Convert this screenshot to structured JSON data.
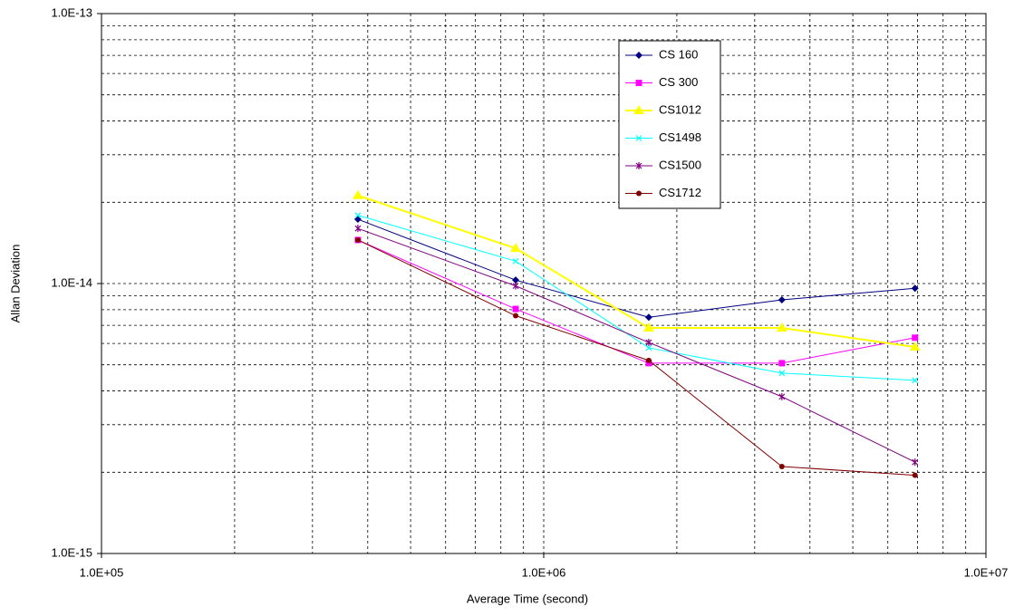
{
  "chart_data": {
    "type": "line",
    "x_label": "Average Time (second)",
    "y_label": "Allan Deviation",
    "log_x": true,
    "log_y": true,
    "grid": true,
    "legend": "top-center",
    "xlim": [
      100000,
      10000000
    ],
    "xticks": [
      {
        "value": 100000,
        "label": "1.0E+05"
      },
      {
        "value": 1000000,
        "label": "1.0E+06"
      },
      {
        "value": 10000000,
        "label": "1.0E+07"
      }
    ],
    "ylim": [
      1e-15,
      1e-13
    ],
    "yticks": [
      {
        "value": 1e-15,
        "label": "1.0E-15"
      },
      {
        "value": 1e-14,
        "label": "1.0E-14"
      },
      {
        "value": 1e-13,
        "label": "1.0E-13"
      }
    ],
    "x": [
      380000,
      864000,
      1728000,
      3456000,
      6912000
    ],
    "series": [
      {
        "name": "CS 160",
        "color": "#000080",
        "marker": "diamond",
        "values": [
          1.73e-14,
          1.03e-14,
          7.5e-15,
          8.7e-15,
          9.6e-15
        ]
      },
      {
        "name": "CS 300",
        "color": "#ff00ff",
        "marker": "square",
        "values": [
          1.45e-14,
          8.05e-15,
          5.07e-15,
          5.07e-15,
          6.3e-15
        ]
      },
      {
        "name": "CS1012",
        "color": "#ffff00",
        "marker": "triangle",
        "values": [
          2.12e-14,
          1.35e-14,
          6.85e-15,
          6.85e-15,
          5.82e-15
        ]
      },
      {
        "name": "CS1498",
        "color": "#00ffff",
        "marker": "x",
        "values": [
          1.79e-14,
          1.21e-14,
          5.78e-15,
          4.66e-15,
          4.38e-15
        ]
      },
      {
        "name": "CS1500",
        "color": "#800080",
        "marker": "star",
        "values": [
          1.6e-14,
          9.8e-15,
          6.05e-15,
          3.81e-15,
          2.18e-15
        ]
      },
      {
        "name": "CS1712",
        "color": "#800000",
        "marker": "circle",
        "values": [
          1.45e-14,
          7.6e-15,
          5.19e-15,
          2.1e-15,
          1.95e-15
        ]
      }
    ]
  }
}
